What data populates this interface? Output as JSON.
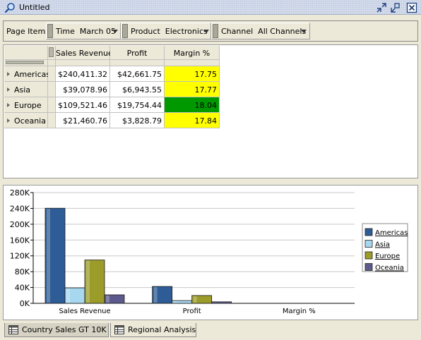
{
  "window": {
    "title": "Untitled",
    "icons": [
      "search-icon",
      "restore-icon",
      "minimize-icon",
      "close-icon"
    ]
  },
  "page_items": {
    "label": "Page Items",
    "items": [
      {
        "dimension": "Time",
        "value": "March 05"
      },
      {
        "dimension": "Product",
        "value": "Electronics"
      },
      {
        "dimension": "Channel",
        "value": "All Channels"
      }
    ]
  },
  "crosstab": {
    "columns": [
      "Sales Revenue",
      "Profit",
      "Margin %"
    ],
    "rows": [
      {
        "label": "Americas",
        "sales": "$240,411.32",
        "profit": "$42,661.75",
        "margin": "17.75",
        "margin_bg": "#ffff00"
      },
      {
        "label": "Asia",
        "sales": "$39,078.96",
        "profit": "$6,943.55",
        "margin": "17.77",
        "margin_bg": "#ffff00"
      },
      {
        "label": "Europe",
        "sales": "$109,521.46",
        "profit": "$19,754.44",
        "margin": "18.04",
        "margin_bg": "#009900"
      },
      {
        "label": "Oceania",
        "sales": "$21,460.76",
        "profit": "$3,828.79",
        "margin": "17.84",
        "margin_bg": "#ffff00"
      }
    ]
  },
  "chart_data": {
    "type": "bar",
    "categories": [
      "Sales Revenue",
      "Profit",
      "Margin %"
    ],
    "ylim": [
      0,
      280000
    ],
    "yticks": [
      "0K",
      "40K",
      "80K",
      "120K",
      "160K",
      "200K",
      "240K",
      "280K"
    ],
    "ytick_values": [
      0,
      40000,
      80000,
      120000,
      160000,
      200000,
      240000,
      280000
    ],
    "grid": true,
    "legend_position": "right",
    "series": [
      {
        "name": "Americas",
        "color": "#2e5c96",
        "values": [
          240411.32,
          42661.75,
          17.75
        ]
      },
      {
        "name": "Asia",
        "color": "#a8d8f0",
        "values": [
          39078.96,
          6943.55,
          17.77
        ]
      },
      {
        "name": "Europe",
        "color": "#9c9c2a",
        "values": [
          109521.46,
          19754.44,
          18.04
        ]
      },
      {
        "name": "Oceania",
        "color": "#5c5a8c",
        "values": [
          21460.76,
          3828.79,
          17.84
        ]
      }
    ]
  },
  "tabs": [
    {
      "label": "Country Sales GT 10K",
      "active": true
    },
    {
      "label": "Regional Analysis",
      "active": false
    }
  ]
}
